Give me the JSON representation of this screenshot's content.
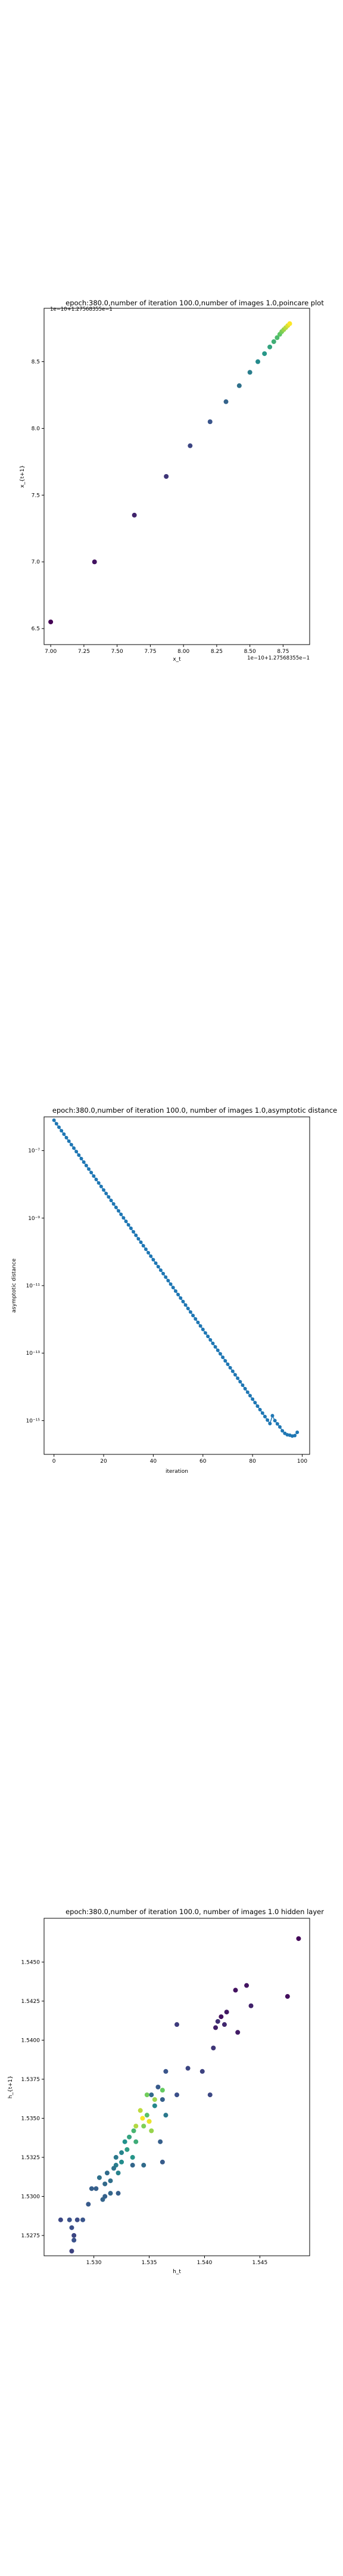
{
  "chart_data": [
    {
      "type": "scatter",
      "title": "epoch:380.0,number of iteration 100.0,number of images 1.0,poincare plot",
      "xlabel": "x_t",
      "ylabel": "x_{t+1}",
      "x_offset_label": "1e−10+1.27568355e−1",
      "y_offset_label": "1e−10+1.27568355e−1",
      "xlim": [
        6.95,
        8.95
      ],
      "ylim": [
        6.38,
        8.9
      ],
      "xticks": [
        7.0,
        7.25,
        7.5,
        7.75,
        8.0,
        8.25,
        8.5,
        8.75
      ],
      "xtick_labels": [
        "7.00",
        "7.25",
        "7.50",
        "7.75",
        "8.00",
        "8.25",
        "8.50",
        "8.75"
      ],
      "yticks": [
        6.5,
        7.0,
        7.5,
        8.0,
        8.5
      ],
      "ytick_labels": [
        "6.5",
        "7.0",
        "7.5",
        "8.0",
        "8.5"
      ],
      "colormap": "viridis",
      "grid": false,
      "points": [
        [
          7.0,
          6.55
        ],
        [
          7.33,
          7.0
        ],
        [
          7.63,
          7.35
        ],
        [
          7.87,
          7.64
        ],
        [
          8.05,
          7.87
        ],
        [
          8.2,
          8.05
        ],
        [
          8.32,
          8.2
        ],
        [
          8.42,
          8.32
        ],
        [
          8.5,
          8.42
        ],
        [
          8.56,
          8.5
        ],
        [
          8.61,
          8.56
        ],
        [
          8.65,
          8.61
        ],
        [
          8.68,
          8.65
        ],
        [
          8.705,
          8.68
        ],
        [
          8.725,
          8.705
        ],
        [
          8.74,
          8.725
        ],
        [
          8.755,
          8.74
        ],
        [
          8.77,
          8.755
        ],
        [
          8.785,
          8.77
        ],
        [
          8.8,
          8.785
        ]
      ]
    },
    {
      "type": "line",
      "title": "epoch:380.0,number of iteration 100.0, number of images 1.0,asymptotic distance",
      "xlabel": "iteration",
      "ylabel": "asymptotic distance",
      "yscale": "log",
      "xlim": [
        -4,
        103
      ],
      "ylim": [
        1e-16,
        1e-06
      ],
      "xticks": [
        0,
        20,
        40,
        60,
        80,
        100
      ],
      "xtick_labels": [
        "0",
        "20",
        "40",
        "60",
        "80",
        "100"
      ],
      "yticks": [
        1e-15,
        1e-13,
        1e-11,
        1e-09,
        1e-07
      ],
      "ytick_labels": [
        "10⁻¹⁵",
        "10⁻¹³",
        "10⁻¹¹",
        "10⁻⁹",
        "10⁻⁷"
      ],
      "color": "#1f77b4",
      "marker": "circle",
      "grid": false,
      "log10_start": -6.1,
      "log10_slope": -0.1033,
      "tail": [
        {
          "x": 88,
          "y": 1.4e-15
        },
        {
          "x": 89,
          "y": 1e-15
        },
        {
          "x": 90,
          "y": 8e-16
        },
        {
          "x": 91,
          "y": 6.5e-16
        },
        {
          "x": 92,
          "y": 5e-16
        },
        {
          "x": 93,
          "y": 4.2e-16
        },
        {
          "x": 94,
          "y": 3.8e-16
        },
        {
          "x": 95,
          "y": 3.7e-16
        },
        {
          "x": 96,
          "y": 3.5e-16
        },
        {
          "x": 97,
          "y": 3.6e-16
        },
        {
          "x": 98,
          "y": 4.5e-16
        }
      ]
    },
    {
      "type": "scatter",
      "title": "epoch:380.0,number of iteration 100.0, number of images 1.0 hidden layer",
      "xlabel": "h_t",
      "ylabel": "h_{t+1}",
      "xlim": [
        1.5255,
        1.5495
      ],
      "ylim": [
        1.5262,
        1.5478
      ],
      "xticks": [
        1.53,
        1.535,
        1.54,
        1.545
      ],
      "xtick_labels": [
        "1.530",
        "1.535",
        "1.540",
        "1.545"
      ],
      "yticks": [
        1.5275,
        1.53,
        1.5325,
        1.535,
        1.5375,
        1.54,
        1.5425,
        1.545
      ],
      "ytick_labels": [
        "1.5275",
        "1.5300",
        "1.5325",
        "1.5350",
        "1.5375",
        "1.5400",
        "1.5425",
        "1.5450"
      ],
      "colormap": "viridis",
      "grid": false,
      "points": [
        [
          1.5485,
          1.5465,
          0.02
        ],
        [
          1.5475,
          1.5428,
          0.04
        ],
        [
          1.5428,
          1.5432,
          0.05
        ],
        [
          1.5438,
          1.5435,
          0.06
        ],
        [
          1.543,
          1.5405,
          0.08
        ],
        [
          1.5442,
          1.5422,
          0.1
        ],
        [
          1.5418,
          1.541,
          0.12
        ],
        [
          1.5412,
          1.5412,
          0.14
        ],
        [
          1.5415,
          1.5415,
          0.05
        ],
        [
          1.5408,
          1.5395,
          0.16
        ],
        [
          1.542,
          1.5418,
          0.07
        ],
        [
          1.541,
          1.5408,
          0.09
        ],
        [
          1.5375,
          1.541,
          0.18
        ],
        [
          1.5398,
          1.538,
          0.2
        ],
        [
          1.5405,
          1.5365,
          0.22
        ],
        [
          1.5385,
          1.5382,
          0.21
        ],
        [
          1.5365,
          1.538,
          0.26
        ],
        [
          1.5375,
          1.5365,
          0.24
        ],
        [
          1.5362,
          1.5362,
          0.3
        ],
        [
          1.5358,
          1.537,
          0.28
        ],
        [
          1.5352,
          1.5365,
          0.34
        ],
        [
          1.5365,
          1.5352,
          0.4
        ],
        [
          1.5355,
          1.5358,
          0.46
        ],
        [
          1.5348,
          1.5352,
          0.72
        ],
        [
          1.5345,
          1.5345,
          0.8
        ],
        [
          1.5342,
          1.5355,
          0.9
        ],
        [
          1.535,
          1.5348,
          0.95
        ],
        [
          1.5338,
          1.5345,
          0.88
        ],
        [
          1.5352,
          1.5342,
          0.84
        ],
        [
          1.5348,
          1.5365,
          0.78
        ],
        [
          1.5355,
          1.5362,
          0.85
        ],
        [
          1.5362,
          1.5368,
          0.76
        ],
        [
          1.5338,
          1.5335,
          0.62
        ],
        [
          1.5332,
          1.5338,
          0.58
        ],
        [
          1.533,
          1.533,
          0.55
        ],
        [
          1.5335,
          1.5325,
          0.52
        ],
        [
          1.5328,
          1.5335,
          0.5
        ],
        [
          1.5336,
          1.5342,
          0.66
        ],
        [
          1.5325,
          1.5322,
          0.48
        ],
        [
          1.5325,
          1.5328,
          0.45
        ],
        [
          1.532,
          1.532,
          0.42
        ],
        [
          1.5322,
          1.5315,
          0.44
        ],
        [
          1.532,
          1.5325,
          0.4
        ],
        [
          1.5318,
          1.5318,
          0.38
        ],
        [
          1.5315,
          1.531,
          0.36
        ],
        [
          1.5312,
          1.5315,
          0.35
        ],
        [
          1.531,
          1.5308,
          0.34
        ],
        [
          1.5315,
          1.5302,
          0.33
        ],
        [
          1.5308,
          1.5298,
          0.32
        ],
        [
          1.5305,
          1.5312,
          0.37
        ],
        [
          1.5302,
          1.5305,
          0.3
        ],
        [
          1.531,
          1.53,
          0.31
        ],
        [
          1.5295,
          1.5295,
          0.28
        ],
        [
          1.5298,
          1.5305,
          0.3
        ],
        [
          1.529,
          1.5285,
          0.26
        ],
        [
          1.5282,
          1.5272,
          0.25
        ],
        [
          1.528,
          1.528,
          0.24
        ],
        [
          1.5285,
          1.5285,
          0.23
        ],
        [
          1.5278,
          1.5285,
          0.25
        ],
        [
          1.527,
          1.5285,
          0.22
        ],
        [
          1.528,
          1.5265,
          0.2
        ],
        [
          1.5282,
          1.5275,
          0.21
        ],
        [
          1.5345,
          1.532,
          0.35
        ],
        [
          1.5335,
          1.532,
          0.33
        ],
        [
          1.536,
          1.5335,
          0.3
        ],
        [
          1.5362,
          1.5322,
          0.29
        ],
        [
          1.5322,
          1.5302,
          0.3
        ],
        [
          1.535,
          1.5348,
          0.97
        ],
        [
          1.5344,
          1.535,
          0.99
        ]
      ]
    }
  ]
}
